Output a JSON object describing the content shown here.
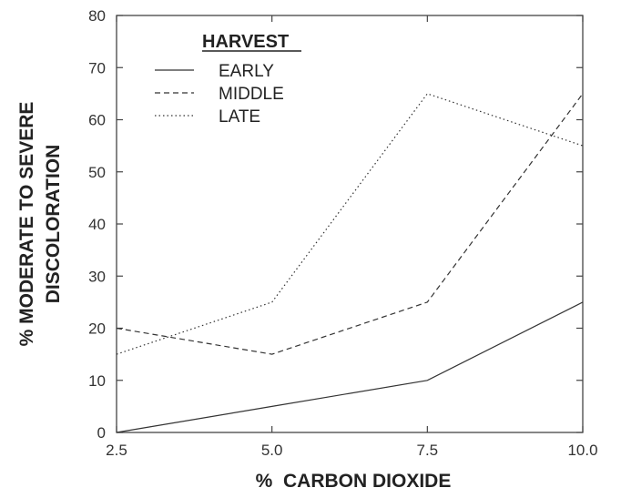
{
  "chart_data": {
    "type": "line",
    "x": [
      2.5,
      5.0,
      7.5,
      10.0
    ],
    "x_tick_labels": [
      "2.5",
      "5.0",
      "7.5",
      "10.0"
    ],
    "y_ticks": [
      0,
      10,
      20,
      30,
      40,
      50,
      60,
      70,
      80
    ],
    "y_tick_labels": [
      "0",
      "10",
      "20",
      "30",
      "40",
      "50",
      "60",
      "70",
      "80"
    ],
    "xlim": [
      2.5,
      10.0
    ],
    "ylim": [
      0,
      80
    ],
    "xlabel": "%  CARBON DIOXIDE",
    "ylabel_lines": [
      "% MODERATE TO SEVERE",
      "DISCOLORATION"
    ],
    "legend": {
      "title": "HARVEST",
      "placement": "top-left"
    },
    "grid": false,
    "series": [
      {
        "name": "EARLY",
        "style": "solid",
        "values": [
          0,
          5,
          10,
          25
        ]
      },
      {
        "name": "MIDDLE",
        "style": "dashed",
        "values": [
          20,
          15,
          25,
          65
        ]
      },
      {
        "name": "LATE",
        "style": "dotted",
        "values": [
          15,
          25,
          65,
          55
        ]
      }
    ],
    "colors": {
      "line": "#333333",
      "axis": "#444444"
    }
  }
}
